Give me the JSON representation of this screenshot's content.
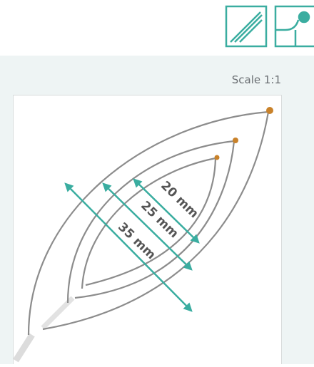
{
  "header": {
    "scale": "Scale 1:1"
  },
  "dimensions": [
    {
      "label": "20 mm"
    },
    {
      "label": "25 mm"
    },
    {
      "label": "35 mm"
    }
  ]
}
